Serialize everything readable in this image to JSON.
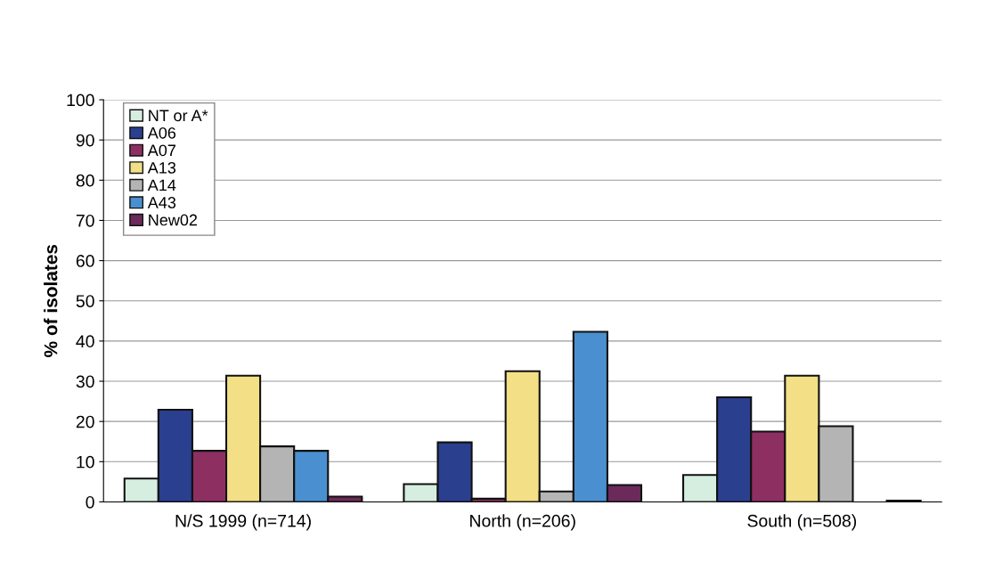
{
  "chart_data": {
    "type": "bar",
    "ylabel": "% of isolates",
    "categories": [
      "N/S 1999 (n=714)",
      "North (n=206)",
      "South (n=508)"
    ],
    "series": [
      {
        "name": "NT or A*",
        "color": "#d6eee0",
        "values": [
          5.8,
          4.4,
          6.7
        ]
      },
      {
        "name": "A06",
        "color": "#2b3f8f",
        "values": [
          22.9,
          14.8,
          26.0
        ]
      },
      {
        "name": "A07",
        "color": "#8e2f62",
        "values": [
          12.7,
          0.8,
          17.5
        ]
      },
      {
        "name": "A13",
        "color": "#f2df86",
        "values": [
          31.4,
          32.5,
          31.4
        ]
      },
      {
        "name": "A14",
        "color": "#b4b4b4",
        "values": [
          13.8,
          2.6,
          18.8
        ]
      },
      {
        "name": "A43",
        "color": "#4a90d0",
        "values": [
          12.7,
          42.3,
          null
        ]
      },
      {
        "name": "New02",
        "color": "#6b2a5a",
        "values": [
          1.3,
          4.2,
          0.3
        ]
      }
    ],
    "ylim": [
      0,
      100
    ],
    "yticks": [
      0,
      10,
      20,
      30,
      40,
      50,
      60,
      70,
      80,
      90,
      100
    ],
    "grid": "y",
    "legend": "top left"
  }
}
